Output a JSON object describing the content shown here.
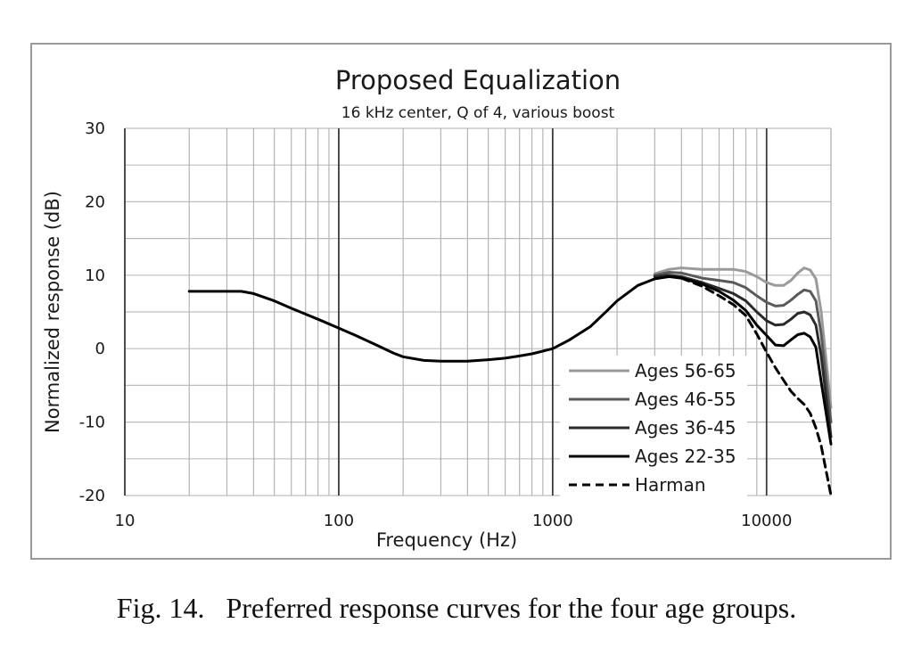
{
  "chart_data": {
    "type": "line",
    "title": "Proposed Equalization",
    "subtitle": "16 kHz center, Q of 4, various boost",
    "xlabel": "Frequency (Hz)",
    "ylabel": "Normalized response (dB)",
    "x_scale": "log",
    "xlim": [
      10,
      20000
    ],
    "ylim": [
      -20,
      30
    ],
    "x_ticks": [
      10,
      100,
      1000,
      10000
    ],
    "x_tick_labels": [
      "10",
      "100",
      "1000",
      "10000"
    ],
    "y_ticks": [
      -20,
      -10,
      0,
      10,
      20,
      30
    ],
    "y_tick_labels": [
      "-20",
      "-10",
      "0",
      "10",
      "20",
      "30"
    ],
    "grid": true,
    "legend_position": "bottom-right",
    "series": [
      {
        "name": "Ages 56-65",
        "color": "#9a9a9a",
        "dash": "solid",
        "points": [
          [
            3000,
            10.2
          ],
          [
            3500,
            10.8
          ],
          [
            4000,
            11.0
          ],
          [
            5000,
            10.8
          ],
          [
            6000,
            10.8
          ],
          [
            7000,
            10.8
          ],
          [
            8000,
            10.5
          ],
          [
            9000,
            9.8
          ],
          [
            10000,
            9.0
          ],
          [
            11000,
            8.6
          ],
          [
            12000,
            8.6
          ],
          [
            13000,
            9.3
          ],
          [
            14000,
            10.3
          ],
          [
            15000,
            11.0
          ],
          [
            16000,
            10.7
          ],
          [
            17000,
            9.5
          ],
          [
            18000,
            5.0
          ],
          [
            20000,
            -8.0
          ]
        ]
      },
      {
        "name": "Ages 46-55",
        "color": "#5a5a5a",
        "dash": "solid",
        "points": [
          [
            3000,
            10.0
          ],
          [
            3500,
            10.4
          ],
          [
            4000,
            10.3
          ],
          [
            5000,
            9.6
          ],
          [
            6000,
            9.3
          ],
          [
            7000,
            9.0
          ],
          [
            8000,
            8.3
          ],
          [
            9000,
            7.2
          ],
          [
            10000,
            6.3
          ],
          [
            11000,
            5.8
          ],
          [
            12000,
            5.9
          ],
          [
            13000,
            6.6
          ],
          [
            14000,
            7.4
          ],
          [
            15000,
            8.0
          ],
          [
            16000,
            7.8
          ],
          [
            17000,
            6.5
          ],
          [
            18000,
            2.0
          ],
          [
            20000,
            -10.0
          ]
        ]
      },
      {
        "name": "Ages 36-45",
        "color": "#2a2a2a",
        "dash": "solid",
        "points": [
          [
            3000,
            9.8
          ],
          [
            3500,
            10.0
          ],
          [
            4000,
            9.8
          ],
          [
            5000,
            9.0
          ],
          [
            6000,
            8.2
          ],
          [
            7000,
            7.5
          ],
          [
            8000,
            6.5
          ],
          [
            9000,
            5.0
          ],
          [
            10000,
            3.8
          ],
          [
            11000,
            3.2
          ],
          [
            12000,
            3.3
          ],
          [
            13000,
            4.0
          ],
          [
            14000,
            4.8
          ],
          [
            15000,
            5.0
          ],
          [
            16000,
            4.6
          ],
          [
            17000,
            3.2
          ],
          [
            18000,
            -1.0
          ],
          [
            20000,
            -12.0
          ]
        ]
      },
      {
        "name": "Ages 22-35",
        "color": "#000000",
        "dash": "solid",
        "points": [
          [
            20,
            7.8
          ],
          [
            25,
            7.8
          ],
          [
            30,
            7.8
          ],
          [
            35,
            7.8
          ],
          [
            40,
            7.5
          ],
          [
            50,
            6.5
          ],
          [
            60,
            5.5
          ],
          [
            70,
            4.7
          ],
          [
            80,
            4.0
          ],
          [
            100,
            2.8
          ],
          [
            120,
            1.8
          ],
          [
            150,
            0.5
          ],
          [
            180,
            -0.6
          ],
          [
            200,
            -1.1
          ],
          [
            250,
            -1.6
          ],
          [
            300,
            -1.7
          ],
          [
            400,
            -1.7
          ],
          [
            500,
            -1.5
          ],
          [
            600,
            -1.3
          ],
          [
            700,
            -1.0
          ],
          [
            800,
            -0.7
          ],
          [
            1000,
            0.0
          ],
          [
            1200,
            1.2
          ],
          [
            1500,
            3.0
          ],
          [
            1800,
            5.2
          ],
          [
            2000,
            6.5
          ],
          [
            2500,
            8.6
          ],
          [
            3000,
            9.5
          ],
          [
            3500,
            9.8
          ],
          [
            4000,
            9.6
          ],
          [
            5000,
            8.8
          ],
          [
            6000,
            7.8
          ],
          [
            7000,
            6.6
          ],
          [
            8000,
            5.2
          ],
          [
            9000,
            3.2
          ],
          [
            10000,
            1.8
          ],
          [
            11000,
            0.5
          ],
          [
            12000,
            0.4
          ],
          [
            13000,
            1.2
          ],
          [
            14000,
            1.9
          ],
          [
            15000,
            2.1
          ],
          [
            16000,
            1.6
          ],
          [
            17000,
            0.2
          ],
          [
            18000,
            -4.5
          ],
          [
            20000,
            -13.0
          ]
        ]
      },
      {
        "name": "Harman",
        "color": "#000000",
        "dash": "dashed",
        "points": [
          [
            4000,
            9.6
          ],
          [
            5000,
            8.5
          ],
          [
            6000,
            7.2
          ],
          [
            7000,
            6.0
          ],
          [
            8000,
            4.5
          ],
          [
            9000,
            2.0
          ],
          [
            10000,
            -0.5
          ],
          [
            11000,
            -2.6
          ],
          [
            12000,
            -4.3
          ],
          [
            13000,
            -5.8
          ],
          [
            14000,
            -6.8
          ],
          [
            15000,
            -7.6
          ],
          [
            16000,
            -8.8
          ],
          [
            17000,
            -10.8
          ],
          [
            18000,
            -13.2
          ],
          [
            20000,
            -20.0
          ]
        ]
      }
    ]
  },
  "caption": "Fig. 14.   Preferred response curves for the four age groups."
}
